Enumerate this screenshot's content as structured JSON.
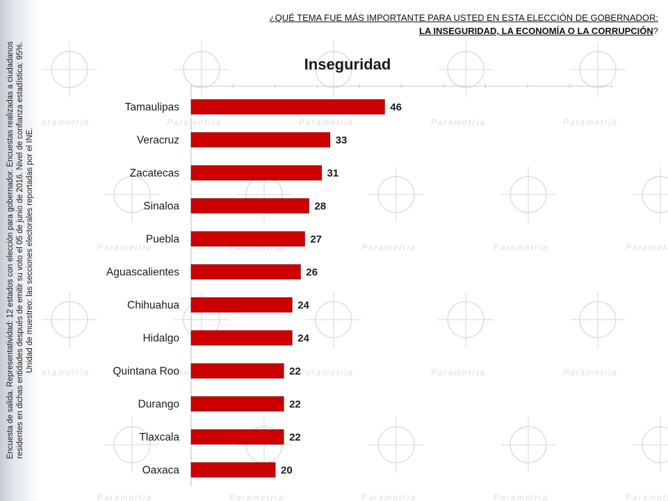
{
  "question": {
    "line1": "¿QUÉ TEMA FUE MÁS IMPORTANTE PARA USTED EN ESTA ELECCIÓN DE GOBERNADOR:",
    "line2": "LA INSEGURIDAD, LA ECONOMÍA O LA CORRUPCIÓN",
    "line2_end": "?"
  },
  "side_note": {
    "line1": "Encuesta de salida. Representatividad: 12 estados con elección para gobernador. Encuestas realizadas a ciudadanos",
    "line2": "residentes en dichas entidades después de emitir su voto el 05 de junio de 2016. Nivel de confianza estadística: 95%.",
    "line3": "Unidad de muestreo: las secciones electorales reportadas por el INE."
  },
  "watermark_text": "Parametría",
  "colors": {
    "bar": "#cc0000",
    "bar_edge": "#8b0000",
    "sidebar": "#c4cbd3"
  },
  "chart_data": {
    "type": "bar",
    "orientation": "horizontal",
    "title": "Inseguridad",
    "categories": [
      "Tamaulipas",
      "Veracruz",
      "Zacatecas",
      "Sinaloa",
      "Puebla",
      "Aguascalientes",
      "Chihuahua",
      "Hidalgo",
      "Quintana Roo",
      "Durango",
      "Tlaxcala",
      "Oaxaca"
    ],
    "values": [
      46,
      33,
      31,
      28,
      27,
      26,
      24,
      24,
      22,
      22,
      22,
      20
    ],
    "xlim": [
      0,
      100
    ],
    "grid": false,
    "data_labels": true
  }
}
